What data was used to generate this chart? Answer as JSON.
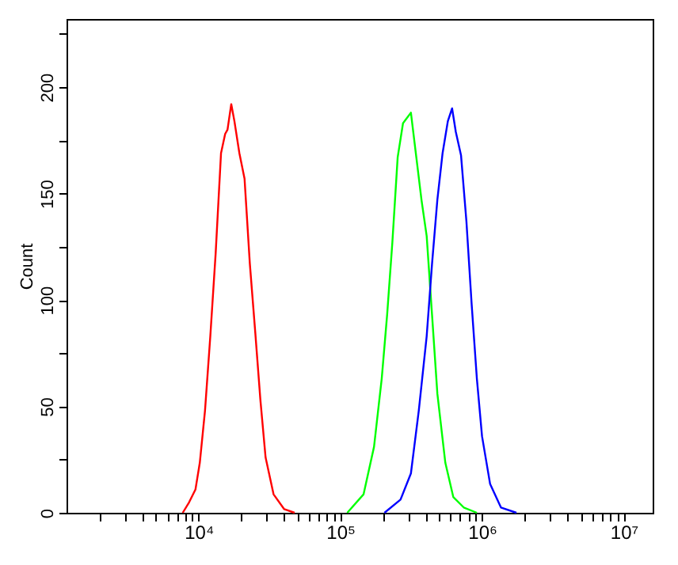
{
  "chart_data": {
    "type": "line",
    "ylabel": "Count",
    "log": "x",
    "xlim": [
      1170,
      16000000
    ],
    "ylim": [
      0,
      232
    ],
    "xticks": [
      {
        "value": 2000,
        "label": null
      },
      {
        "value": 3000,
        "label": null
      },
      {
        "value": 4000,
        "label": null
      },
      {
        "value": 5000,
        "label": null
      },
      {
        "value": 6000,
        "label": null
      },
      {
        "value": 7000,
        "label": null
      },
      {
        "value": 8000,
        "label": null
      },
      {
        "value": 9000,
        "label": null
      },
      {
        "value": 10000,
        "label": "10⁴"
      },
      {
        "value": 20000,
        "label": null
      },
      {
        "value": 30000,
        "label": null
      },
      {
        "value": 40000,
        "label": null
      },
      {
        "value": 50000,
        "label": null
      },
      {
        "value": 60000,
        "label": null
      },
      {
        "value": 70000,
        "label": null
      },
      {
        "value": 80000,
        "label": null
      },
      {
        "value": 90000,
        "label": null
      },
      {
        "value": 100000,
        "label": "10⁵"
      },
      {
        "value": 200000,
        "label": null
      },
      {
        "value": 300000,
        "label": null
      },
      {
        "value": 400000,
        "label": null
      },
      {
        "value": 500000,
        "label": null
      },
      {
        "value": 600000,
        "label": null
      },
      {
        "value": 700000,
        "label": null
      },
      {
        "value": 800000,
        "label": null
      },
      {
        "value": 900000,
        "label": null
      },
      {
        "value": 1000000,
        "label": "10⁶"
      },
      {
        "value": 2000000,
        "label": null
      },
      {
        "value": 3000000,
        "label": null
      },
      {
        "value": 4000000,
        "label": null
      },
      {
        "value": 5000000,
        "label": null
      },
      {
        "value": 6000000,
        "label": null
      },
      {
        "value": 7000000,
        "label": null
      },
      {
        "value": 8000000,
        "label": null
      },
      {
        "value": 9000000,
        "label": null
      },
      {
        "value": 10000000,
        "label": "10⁷"
      }
    ],
    "yticks": [
      0,
      {
        "value": 25,
        "label": null
      },
      50,
      {
        "value": 75,
        "label": null
      },
      100,
      {
        "value": 125,
        "label": null
      },
      150,
      {
        "value": 175,
        "label": null
      },
      200,
      {
        "value": 225,
        "label": null
      }
    ],
    "series": [
      {
        "color": "#ff0000",
        "x": [
          7730,
          8570,
          9510,
          10200,
          11100,
          12100,
          13200,
          14400,
          15400,
          16000,
          17000,
          17900,
          19400,
          21100,
          23000,
          25100,
          27300,
          29700,
          33800,
          40200,
          47600
        ],
        "values": [
          0,
          4.9,
          11,
          23.5,
          48,
          83,
          122,
          169,
          178,
          180,
          192,
          184,
          169,
          157,
          117,
          85,
          53,
          26,
          8.7,
          1.7,
          0
        ]
      },
      {
        "color": "#00ff00",
        "x": [
          112000,
          146000,
          173000,
          196000,
          214000,
          233000,
          254000,
          277000,
          315000,
          344000,
          374000,
          407000,
          444000,
          484000,
          551000,
          627000,
          743000,
          920000
        ],
        "values": [
          0,
          8.7,
          31,
          63,
          93,
          127,
          167,
          183,
          188,
          167,
          147,
          130,
          93,
          56,
          23.5,
          7.4,
          2.5,
          0
        ]
      },
      {
        "color": "#0000ff",
        "x": [
          205000,
          266000,
          315000,
          358000,
          407000,
          444000,
          484000,
          527000,
          574000,
          615000,
          653000,
          711000,
          776000,
          845000,
          920000,
          1000000,
          1140000,
          1360000,
          1750000
        ],
        "values": [
          0,
          6.2,
          18.5,
          48,
          83,
          117,
          147,
          169,
          184,
          190,
          179,
          168,
          137,
          98,
          63,
          36,
          13.6,
          2.5,
          0
        ]
      }
    ]
  }
}
